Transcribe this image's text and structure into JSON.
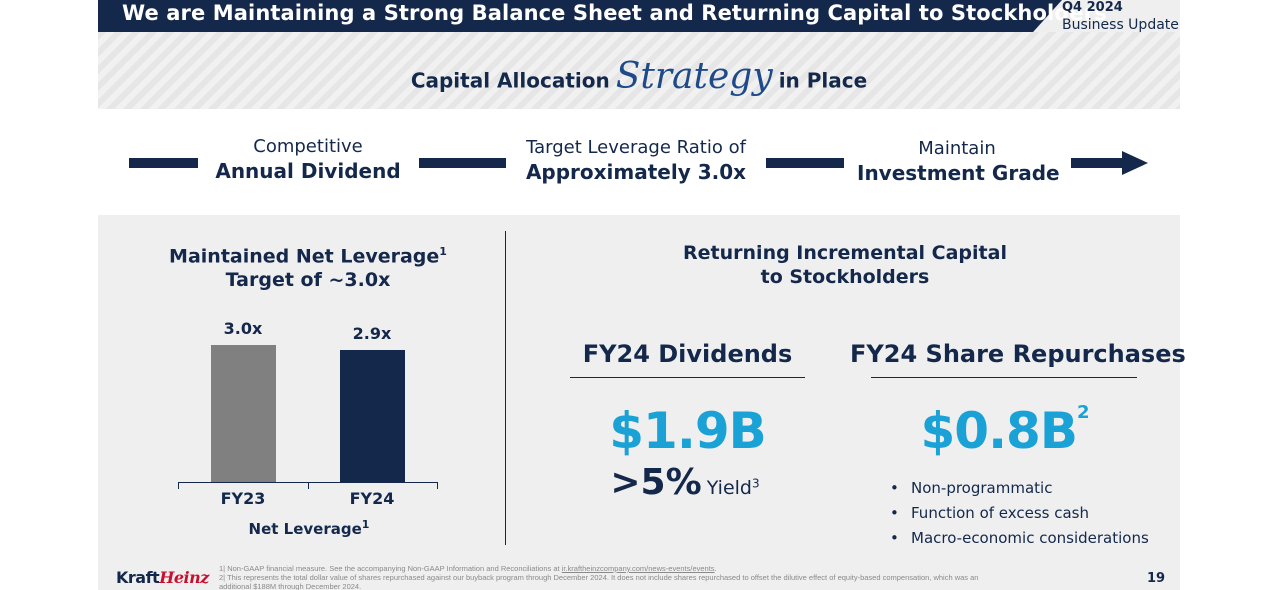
{
  "header": {
    "title": "We are Maintaining a Strong Balance Sheet and Returning Capital to Stockholders",
    "quarter": "Q4 2024",
    "subtitle": "Business Update"
  },
  "strategy": {
    "prefix": "Capital Allocation",
    "script_word": "Strategy",
    "suffix": "in Place"
  },
  "pillars": [
    {
      "line1": "Competitive",
      "line2": "Annual Dividend"
    },
    {
      "line1": "Target Leverage Ratio of",
      "line2": "Approximately 3.0x"
    },
    {
      "line1": "Maintain",
      "line2": "Investment Grade"
    }
  ],
  "left_section": {
    "title_line1": "Maintained Net Leverage",
    "title_sup": "1",
    "title_line2": "Target of ~3.0x",
    "footer_label": "Net Leverage",
    "footer_sup": "1"
  },
  "chart_data": {
    "type": "bar",
    "categories": [
      "FY23",
      "FY24"
    ],
    "values": [
      3.0,
      2.9
    ],
    "data_labels": [
      "3.0x",
      "2.9x"
    ],
    "colors": [
      "#808080",
      "#14284b"
    ],
    "xlabel": "Net Leverage",
    "ylim": [
      0,
      3.0
    ]
  },
  "right_section": {
    "title_line1": "Returning Incremental Capital",
    "title_line2": "to Stockholders",
    "dividends": {
      "heading": "FY24 Dividends",
      "amount": "$1.9B",
      "yield_value": ">5%",
      "yield_label": "Yield",
      "yield_sup": "3"
    },
    "repurchases": {
      "heading": "FY24 Share Repurchases",
      "amount": "$0.8B",
      "amount_sup": "2",
      "bullets": [
        "Non-programmatic",
        "Function of excess cash",
        "Macro-economic considerations"
      ]
    }
  },
  "footer": {
    "logo_part1": "Kraft",
    "logo_part2": "Heinz",
    "note1_text": "1| Non-GAAP financial measure. See the accompanying Non-GAAP Information and Reconciliations at",
    "note1_link": "ir.kraftheinzcompany.com/news-events/events",
    "note1_end": ".",
    "note2_line1": "2| This represents the total dollar value of shares repurchased against our buyback program through December 2024. It does not include shares repurchased to offset the dilutive effect of equity-based compensation, which was an",
    "note2_line2": "additional $188M through December 2024.",
    "page_number": "19"
  },
  "colors": {
    "navy": "#14284b",
    "accent_blue": "#1aa1d6",
    "gray_bar": "#808080",
    "background": "#efefef"
  }
}
